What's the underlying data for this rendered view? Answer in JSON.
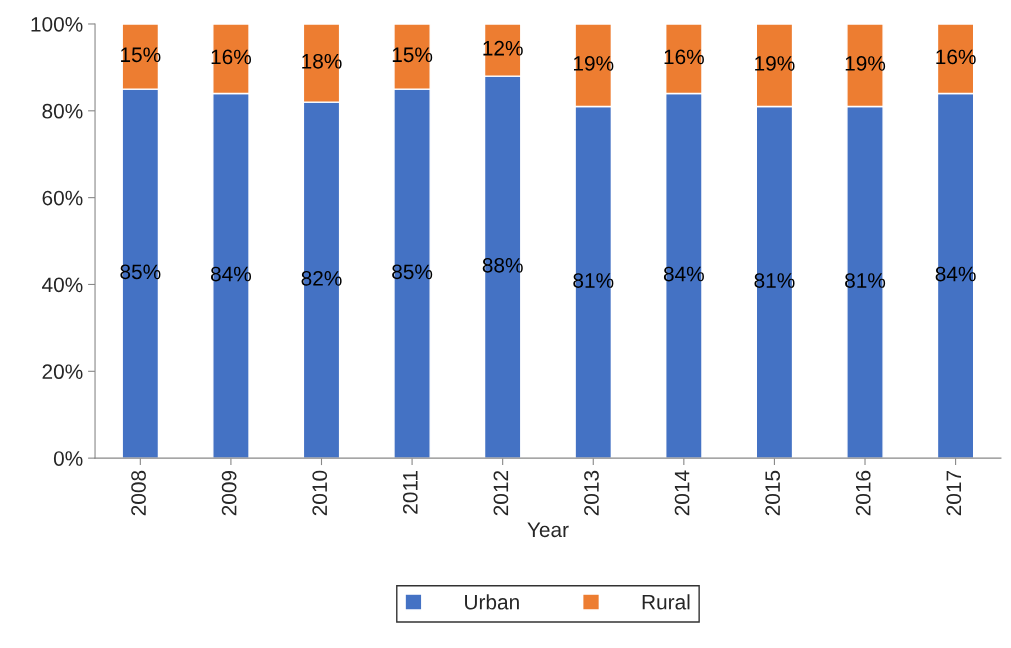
{
  "chart_data": {
    "type": "bar",
    "stacked": true,
    "xlabel": "Year",
    "categories": [
      "2008",
      "2009",
      "2010",
      "2011",
      "2012",
      "2013",
      "2014",
      "2015",
      "2016",
      "2017"
    ],
    "series": [
      {
        "name": "Urban",
        "color": "#4472c4",
        "values": [
          85,
          84,
          82,
          85,
          88,
          81,
          84,
          81,
          81,
          84
        ],
        "value_labels": [
          "85%",
          "84%",
          "82%",
          "85%",
          "88%",
          "81%",
          "84%",
          "81%",
          "81%",
          "84%"
        ]
      },
      {
        "name": "Rural",
        "color": "#ed7d31",
        "values": [
          15,
          16,
          18,
          15,
          12,
          19,
          16,
          19,
          19,
          16
        ],
        "value_labels": [
          "15%",
          "16%",
          "18%",
          "15%",
          "12%",
          "19%",
          "16%",
          "19%",
          "19%",
          "16%"
        ]
      }
    ],
    "ylim": [
      0,
      100
    ],
    "yticks": [
      {
        "value": 0,
        "label": "0%"
      },
      {
        "value": 20,
        "label": "20%"
      },
      {
        "value": 40,
        "label": "40%"
      },
      {
        "value": 60,
        "label": "60%"
      },
      {
        "value": 80,
        "label": "80%"
      },
      {
        "value": 100,
        "label": "100%"
      }
    ],
    "grid": false,
    "legend": "bottom"
  }
}
